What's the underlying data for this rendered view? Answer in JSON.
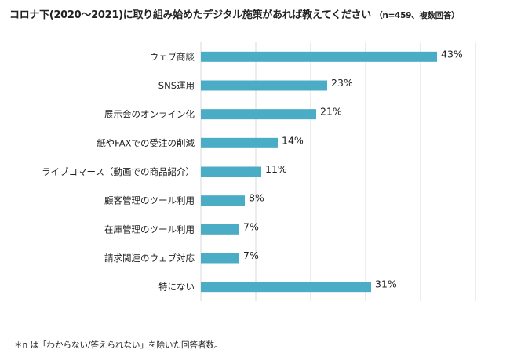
{
  "title": "コロナ下(2020～2021)に取り組み始めたデジタル施策があれば教えてください",
  "subtitle": "（n=459、複数回答）",
  "footnote": "＊n は「わからない/答えられない」を除いた回答者数。",
  "colors": {
    "bar": "#4bacc6",
    "grid": "#d9d9d9"
  },
  "chart_data": {
    "type": "bar",
    "orientation": "horizontal",
    "categories": [
      "ウェブ商談",
      "SNS運用",
      "展示会のオンライン化",
      "紙やFAXでの受注の削減",
      "ライブコマース（動画での商品紹介）",
      "顧客管理のツール利用",
      "在庫管理のツール利用",
      "請求関連のウェブ対応",
      "特にない"
    ],
    "values": [
      43,
      23,
      21,
      14,
      11,
      8,
      7,
      7,
      31
    ],
    "value_labels": [
      "43%",
      "23%",
      "21%",
      "14%",
      "11%",
      "8%",
      "7%",
      "7%",
      "31%"
    ],
    "unit": "%",
    "xlim": [
      0,
      50
    ],
    "grid": true,
    "legend": "none"
  }
}
